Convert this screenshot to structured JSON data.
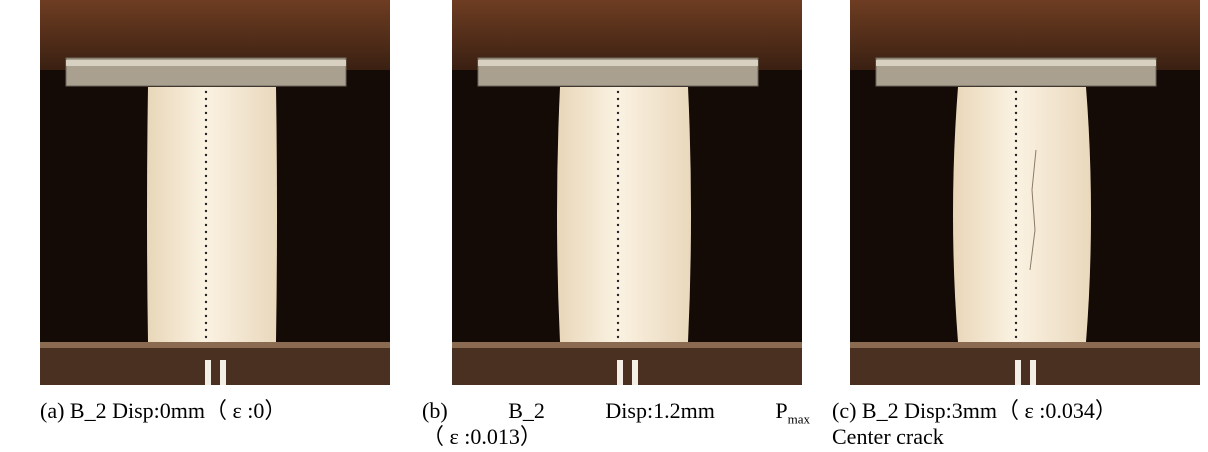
{
  "panels": [
    {
      "label": "(a)",
      "caption": "B_2 Disp:0mm（ ε :0）"
    },
    {
      "label": "(b)",
      "caption": "B_2",
      "caption_2": "Disp:1.2mm",
      "symbol": "P",
      "subscript": "max",
      "caption_line2": "（ ε :0.013）"
    },
    {
      "label": "(c)",
      "caption": "B_2 Disp:3mm（ ε :0.034）",
      "caption_line2": "Center crack"
    }
  ]
}
